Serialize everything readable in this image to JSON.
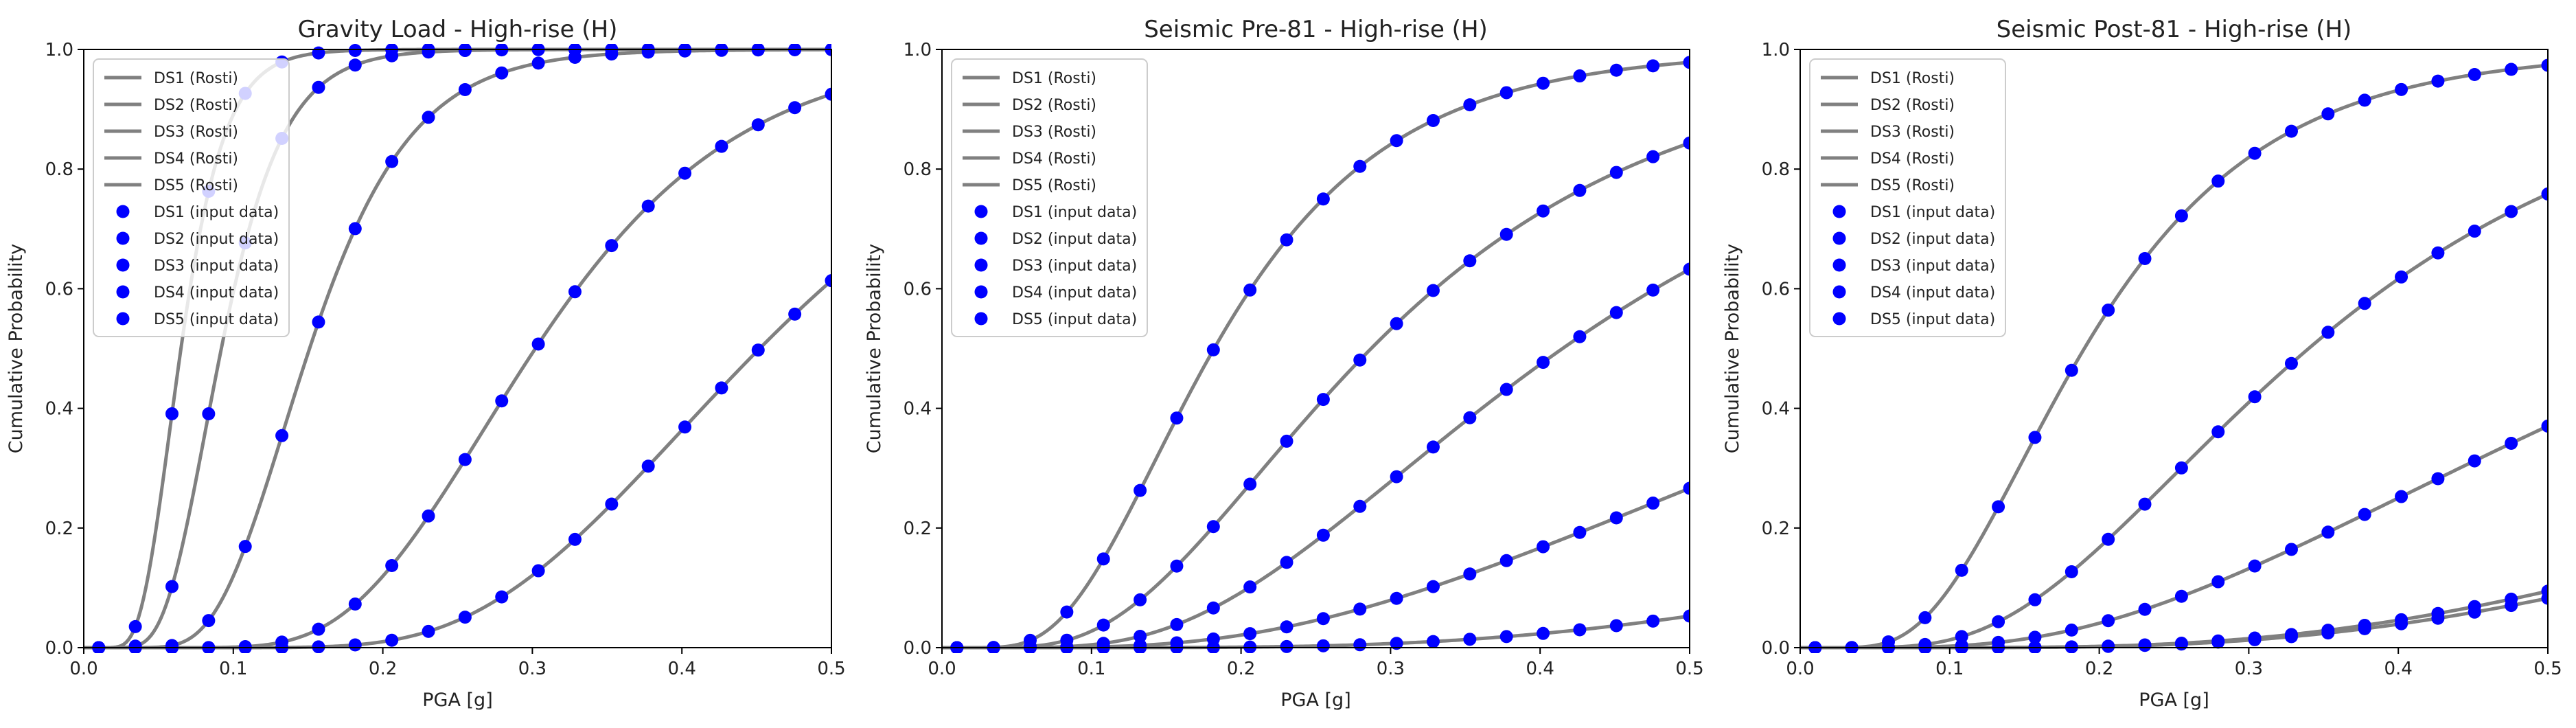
{
  "chart_data": [
    {
      "type": "line",
      "title": "Gravity Load - High-rise (H)",
      "xlabel": "PGA [g]",
      "ylabel": "Cumulative Probability",
      "xlim": [
        0,
        0.5
      ],
      "ylim": [
        0,
        1
      ],
      "xticks": [
        "0.0",
        "0.1",
        "0.2",
        "0.3",
        "0.4",
        "0.5"
      ],
      "yticks": [
        "0.0",
        "0.2",
        "0.4",
        "0.6",
        "0.8",
        "1.0"
      ],
      "legend_position": "top-left",
      "line_color": "#808080",
      "marker_color": "#0000ff",
      "curve_type": "lognormal CDF (median, dispersion)",
      "series": [
        {
          "name": "DS1 (Rosti)",
          "marker_name": "DS1 (input data)",
          "median": 0.065,
          "beta": 0.35
        },
        {
          "name": "DS2 (Rosti)",
          "marker_name": "DS2 (input data)",
          "median": 0.092,
          "beta": 0.35
        },
        {
          "name": "DS3 (Rosti)",
          "marker_name": "DS3 (input data)",
          "median": 0.151,
          "beta": 0.35
        },
        {
          "name": "DS4 (Rosti)",
          "marker_name": "DS4 (input data)",
          "median": 0.302,
          "beta": 0.35
        },
        {
          "name": "DS5 (Rosti)",
          "marker_name": "DS5 (input data)",
          "median": 0.452,
          "beta": 0.35
        }
      ]
    },
    {
      "type": "line",
      "title": "Seismic Pre-81 - High-rise (H)",
      "xlabel": "PGA [g]",
      "ylabel": "Cumulative Probability",
      "xlim": [
        0,
        0.5
      ],
      "ylim": [
        0,
        1
      ],
      "xticks": [
        "0.0",
        "0.1",
        "0.2",
        "0.3",
        "0.4",
        "0.5"
      ],
      "yticks": [
        "0.0",
        "0.2",
        "0.4",
        "0.6",
        "0.8",
        "1.0"
      ],
      "legend_position": "top-left",
      "line_color": "#808080",
      "marker_color": "#0000ff",
      "curve_type": "lognormal CDF (median, dispersion)",
      "series": [
        {
          "name": "DS1 (Rosti)",
          "marker_name": "DS1 (input data)",
          "median": 0.182,
          "beta": 0.5
        },
        {
          "name": "DS2 (Rosti)",
          "marker_name": "DS2 (input data)",
          "median": 0.287,
          "beta": 0.55
        },
        {
          "name": "DS3 (Rosti)",
          "marker_name": "DS3 (input data)",
          "median": 0.415,
          "beta": 0.55
        },
        {
          "name": "DS4 (Rosti)",
          "marker_name": "DS4 (input data)",
          "median": 0.75,
          "beta": 0.65
        },
        {
          "name": "DS5 (Rosti)",
          "marker_name": "DS5 (input data)",
          "median": 1.32,
          "beta": 0.6
        }
      ]
    },
    {
      "type": "line",
      "title": "Seismic Post-81 - High-rise (H)",
      "xlabel": "PGA [g]",
      "ylabel": "Cumulative Probability",
      "xlim": [
        0,
        0.5
      ],
      "ylim": [
        0,
        1
      ],
      "xticks": [
        "0.0",
        "0.1",
        "0.2",
        "0.3",
        "0.4",
        "0.5"
      ],
      "yticks": [
        "0.0",
        "0.2",
        "0.4",
        "0.6",
        "0.8",
        "1.0"
      ],
      "legend_position": "top-left",
      "line_color": "#808080",
      "marker_color": "#0000ff",
      "curve_type": "lognormal CDF (median, dispersion)",
      "series": [
        {
          "name": "DS1 (Rosti)",
          "marker_name": "DS1 (input data)",
          "median": 0.19,
          "beta": 0.5
        },
        {
          "name": "DS2 (Rosti)",
          "marker_name": "DS2 (input data)",
          "median": 0.34,
          "beta": 0.55
        },
        {
          "name": "DS3 (Rosti)",
          "marker_name": "DS3 (input data)",
          "median": 0.62,
          "beta": 0.65
        },
        {
          "name": "DS4 (Rosti)",
          "marker_name": "DS4 (input data)",
          "median": 1.1,
          "beta": 0.6
        },
        {
          "name": "DS5 (Rosti)",
          "marker_name": "DS5 (input data)",
          "median": 1.15,
          "beta": 0.6
        }
      ]
    }
  ]
}
